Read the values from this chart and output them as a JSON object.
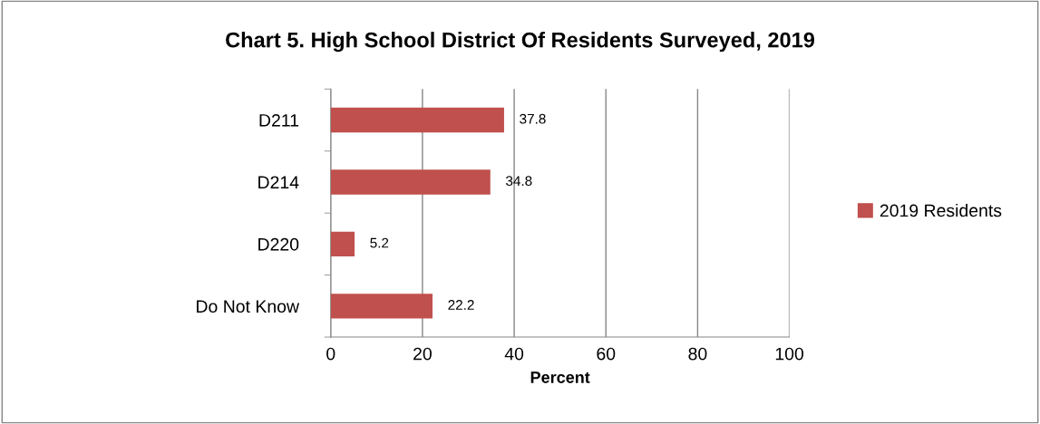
{
  "chart_data": {
    "type": "bar",
    "orientation": "horizontal",
    "title": "Chart 5. High School District Of Residents Surveyed, 2019",
    "xlabel": "Percent",
    "categories": [
      "D211",
      "D214",
      "D220",
      "Do Not Know"
    ],
    "series": [
      {
        "name": "2019 Residents",
        "color": "#c0504d",
        "values": [
          37.8,
          34.8,
          5.2,
          22.2
        ]
      }
    ],
    "xlim": [
      0,
      100
    ],
    "xticks": [
      0,
      20,
      40,
      60,
      80,
      100
    ],
    "grid": "x",
    "legend": "right",
    "data_labels": true
  }
}
